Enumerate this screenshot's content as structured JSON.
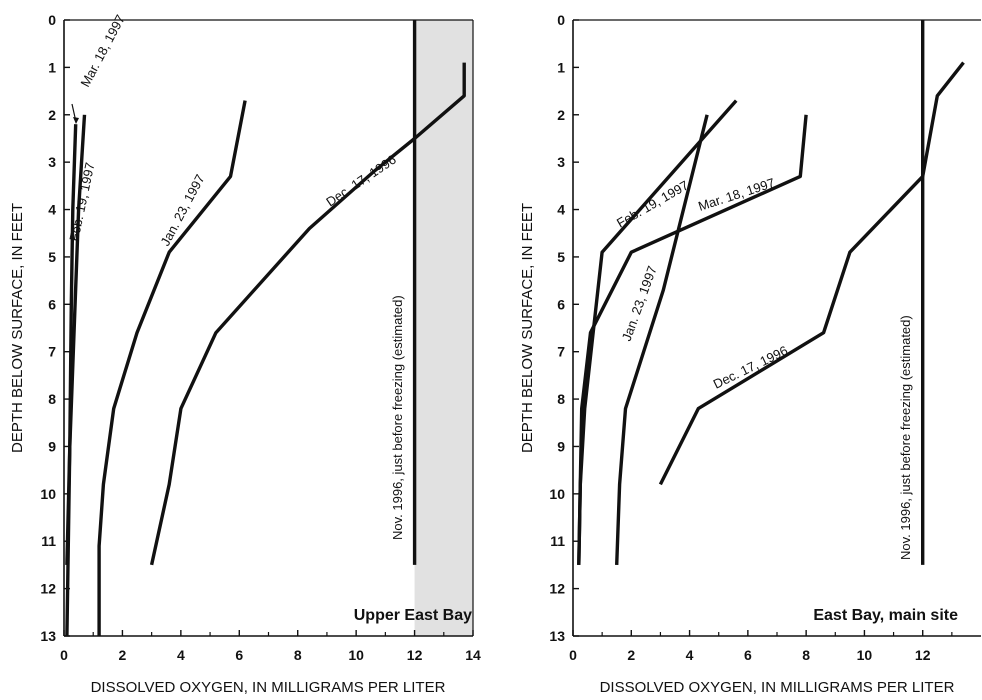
{
  "chart_data": [
    {
      "type": "line",
      "title": "Upper East Bay",
      "xlabel": "DISSOLVED OXYGEN, IN MILLIGRAMS PER LITER",
      "ylabel": "DEPTH BELOW SURFACE, IN FEET",
      "xlim": [
        0,
        14
      ],
      "ylim": [
        13,
        0
      ],
      "y_inverted": true,
      "x_ticks": [
        0,
        2,
        4,
        6,
        8,
        10,
        12,
        14
      ],
      "y_ticks": [
        0,
        1,
        2,
        3,
        4,
        5,
        6,
        7,
        8,
        9,
        10,
        11,
        12,
        13
      ],
      "shaded_region": {
        "x_from": 12,
        "x_to": 14,
        "color": "#c9c9c9"
      },
      "series": [
        {
          "name": "Mar. 18, 1997",
          "x": [
            0.4,
            0.3,
            0.25,
            0.2,
            0.1
          ],
          "y": [
            2.2,
            4.0,
            6.0,
            9.0,
            11.5
          ]
        },
        {
          "name": "Feb. 19, 1997",
          "x": [
            0.7,
            0.5,
            0.35,
            0.2,
            0.1
          ],
          "y": [
            2.0,
            4.0,
            6.5,
            9.0,
            13.0
          ]
        },
        {
          "name": "Jan. 23, 1997",
          "x": [
            6.2,
            5.7,
            3.6,
            2.5,
            1.7,
            1.35,
            1.2,
            1.2
          ],
          "y": [
            1.7,
            3.3,
            4.9,
            6.6,
            8.2,
            9.8,
            11.1,
            13.0
          ]
        },
        {
          "name": "Dec. 17, 1996",
          "x": [
            13.7,
            13.7,
            12.0,
            10.6,
            8.4,
            5.2,
            4.0,
            3.6,
            3.0
          ],
          "y": [
            0.9,
            1.6,
            2.5,
            3.2,
            4.4,
            6.6,
            8.2,
            9.8,
            11.5
          ]
        },
        {
          "name": "Nov. 1996, just before freezing (estimated)",
          "x": [
            12.0,
            12.0
          ],
          "y": [
            0,
            11.5
          ]
        }
      ]
    },
    {
      "type": "line",
      "title": "East Bay, main site",
      "xlabel": "DISSOLVED OXYGEN, IN MILLIGRAMS PER LITER",
      "ylabel": "DEPTH BELOW SURFACE, IN FEET",
      "xlim": [
        0,
        14
      ],
      "ylim": [
        13,
        0
      ],
      "y_inverted": true,
      "x_ticks": [
        0,
        2,
        4,
        6,
        8,
        10,
        12
      ],
      "y_ticks": [
        0,
        1,
        2,
        3,
        4,
        5,
        6,
        7,
        8,
        9,
        10,
        11,
        12,
        13
      ],
      "shaded_region": null,
      "series": [
        {
          "name": "Feb. 19, 1997",
          "x": [
            5.6,
            1.0,
            0.4,
            0.25,
            0.2
          ],
          "y": [
            1.7,
            4.9,
            8.2,
            9.8,
            11.5
          ]
        },
        {
          "name": "Mar. 18, 1997",
          "x": [
            8.0,
            7.8,
            2.0,
            0.6,
            0.3,
            0.2
          ],
          "y": [
            2.0,
            3.3,
            4.9,
            6.6,
            8.2,
            11.5
          ]
        },
        {
          "name": "Jan. 23, 1997",
          "x": [
            4.6,
            3.1,
            1.8,
            1.6,
            1.5
          ],
          "y": [
            2.0,
            5.7,
            8.2,
            9.8,
            11.5
          ]
        },
        {
          "name": "Dec. 17, 1996",
          "x": [
            13.4,
            12.5,
            12.0,
            9.5,
            8.6,
            4.3,
            3.0
          ],
          "y": [
            0.9,
            1.6,
            3.3,
            4.9,
            6.6,
            8.2,
            9.8
          ]
        },
        {
          "name": "Nov. 1996, just before freezing (estimated)",
          "x": [
            12.0,
            12.0
          ],
          "y": [
            0,
            11.5
          ]
        }
      ]
    }
  ],
  "colors": {
    "line": "#111111",
    "shading": "#c9c9c9",
    "background": "#ffffff"
  }
}
